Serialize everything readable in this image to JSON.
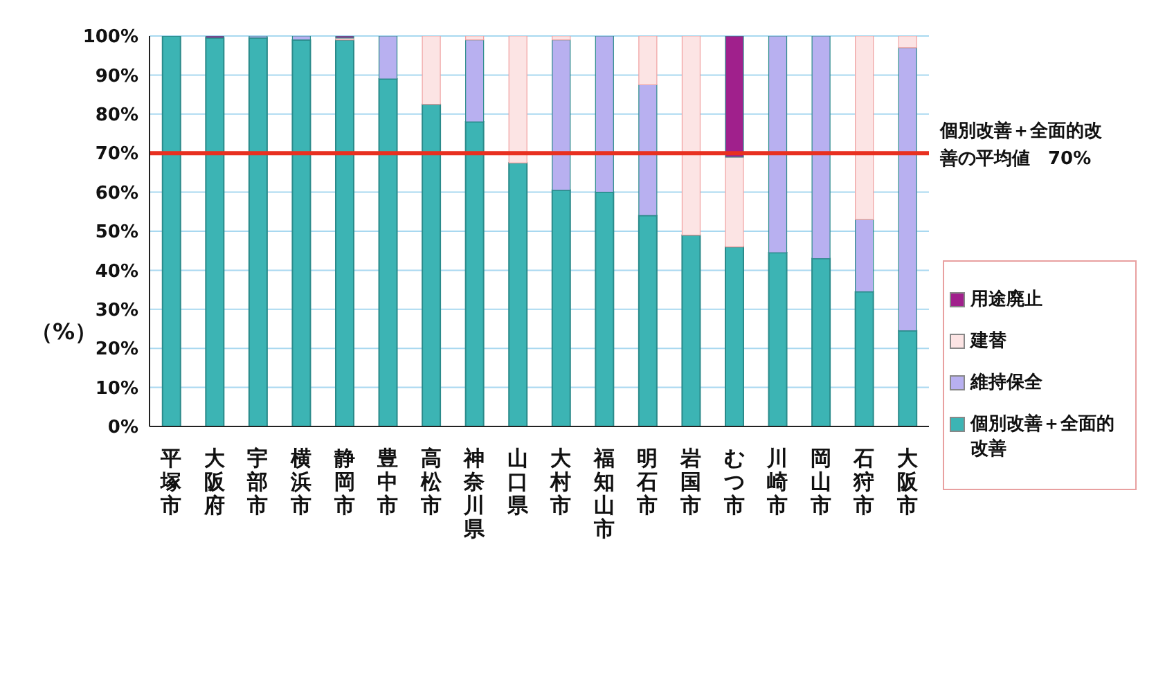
{
  "chart_data": {
    "type": "bar",
    "stacked": true,
    "ylabel": "（%）",
    "categories": [
      "平塚市",
      "大阪府",
      "宇部市",
      "横浜市",
      "静岡市",
      "豊中市",
      "高松市",
      "神奈川県",
      "山口県",
      "大村市",
      "福知山市",
      "明石市",
      "岩国市",
      "むつ市",
      "川崎市",
      "岡山市",
      "石狩市",
      "大阪市"
    ],
    "series": [
      {
        "name": "個別改善＋全面的改善",
        "color": "#3cb4b4",
        "values": [
          100,
          99.5,
          99.5,
          99,
          99,
          89,
          82.5,
          78,
          67.5,
          60.5,
          60,
          54,
          49,
          46,
          44.5,
          43,
          34.5,
          24.5
        ]
      },
      {
        "name": "維持保全",
        "color": "#b8b0f0",
        "values": [
          0,
          0,
          0.5,
          1,
          0,
          11,
          0,
          21,
          0,
          38.5,
          40,
          33.5,
          0,
          0,
          55.5,
          57,
          18.5,
          72.5
        ]
      },
      {
        "name": "建替",
        "color": "#fce4e4",
        "values": [
          0,
          0,
          0,
          0,
          0.5,
          0,
          17.5,
          1,
          32.5,
          1,
          0,
          12.5,
          51,
          23,
          0,
          0,
          47,
          3
        ]
      },
      {
        "name": "用途廃止",
        "color": "#a0208c",
        "values": [
          0,
          0.5,
          0,
          0,
          0.5,
          0,
          0,
          0,
          0,
          0,
          0,
          0,
          0,
          31,
          0,
          0,
          0,
          0
        ]
      }
    ],
    "ylim": [
      0,
      100
    ],
    "yticks": [
      {
        "value": 0,
        "label": "0%"
      },
      {
        "value": 10,
        "label": "10%"
      },
      {
        "value": 20,
        "label": "20%"
      },
      {
        "value": 30,
        "label": "30%"
      },
      {
        "value": 40,
        "label": "40%"
      },
      {
        "value": 50,
        "label": "50%"
      },
      {
        "value": 60,
        "label": "60%"
      },
      {
        "value": 70,
        "label": "70%"
      },
      {
        "value": 80,
        "label": "80%"
      },
      {
        "value": 90,
        "label": "90%"
      },
      {
        "value": 100,
        "label": "100%"
      }
    ],
    "grid": "y",
    "legend": "right",
    "ref_lines": [
      {
        "axis": "y",
        "value": 70,
        "label": "個別改善＋全面的改善の平均値　70%",
        "color": "#e83020"
      }
    ]
  }
}
